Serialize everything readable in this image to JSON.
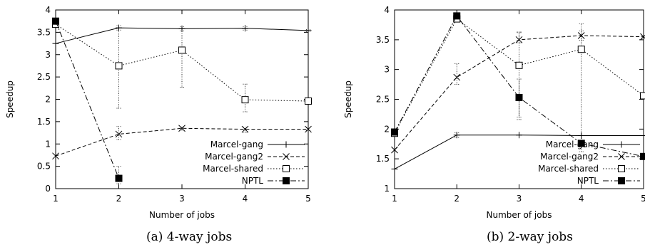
{
  "chart_data": [
    {
      "type": "line",
      "caption": "(a) 4-way jobs",
      "xlabel": "Number of jobs",
      "ylabel": "Speedup",
      "x": [
        1,
        2,
        3,
        4,
        5
      ],
      "xlim": [
        1,
        5
      ],
      "ylim": [
        0,
        4
      ],
      "xticks": [
        "1",
        "2",
        "3",
        "4",
        "5"
      ],
      "yticks": [
        "0",
        "0.5",
        "1",
        "1.5",
        "2",
        "2.5",
        "3",
        "3.5",
        "4"
      ],
      "legend_position": "bottom-right",
      "grid": false,
      "series": [
        {
          "name": "Marcel-gang",
          "marker": "plus",
          "dash": "solid",
          "values": [
            3.25,
            3.6,
            3.58,
            3.59,
            3.54
          ],
          "errors": [
            [
              0,
              0
            ],
            [
              0.05,
              0.05
            ],
            [
              0.05,
              0.05
            ],
            [
              0.04,
              0.04
            ],
            [
              0.02,
              0.02
            ]
          ]
        },
        {
          "name": "Marcel-gang2",
          "marker": "cross",
          "dash": "dashed",
          "values": [
            0.73,
            1.22,
            1.35,
            1.33,
            1.33
          ],
          "errors": [
            [
              0,
              0
            ],
            [
              0.12,
              0.17
            ],
            [
              0.04,
              0.03
            ],
            [
              0.07,
              0.05
            ],
            [
              0.03,
              0.03
            ]
          ]
        },
        {
          "name": "Marcel-shared",
          "marker": "open-square",
          "dash": "dotted",
          "values": [
            3.68,
            2.75,
            3.1,
            1.99,
            1.96
          ],
          "errors": [
            [
              0,
              0
            ],
            [
              0.95,
              0.85
            ],
            [
              0.83,
              0.48
            ],
            [
              0.27,
              0.35
            ],
            [
              0.02,
              0.02
            ]
          ]
        },
        {
          "name": "NPTL",
          "marker": "filled-square",
          "dash": "dashdot",
          "values": [
            3.75,
            0.23,
            null,
            null,
            null
          ],
          "errors": [
            [
              0,
              0
            ],
            [
              0.12,
              0.27
            ],
            [
              0,
              0
            ],
            [
              0,
              0
            ],
            [
              0,
              0
            ]
          ]
        }
      ]
    },
    {
      "type": "line",
      "caption": "(b) 2-way jobs",
      "xlabel": "Number of jobs",
      "ylabel": "Speedup",
      "x": [
        1,
        2,
        3,
        4,
        5
      ],
      "xlim": [
        1,
        5
      ],
      "ylim": [
        1,
        4
      ],
      "xticks": [
        "1",
        "2",
        "3",
        "4",
        "5"
      ],
      "yticks": [
        "1",
        "1.5",
        "2",
        "2.5",
        "3",
        "3.5",
        "4"
      ],
      "legend_position": "bottom-right",
      "grid": false,
      "series": [
        {
          "name": "Marcel-gang",
          "marker": "plus",
          "dash": "solid",
          "values": [
            1.33,
            1.9,
            1.9,
            1.89,
            1.89
          ],
          "errors": [
            [
              0,
              0
            ],
            [
              0.04,
              0.04
            ],
            [
              0,
              0
            ],
            [
              0,
              0
            ],
            [
              0,
              0
            ]
          ]
        },
        {
          "name": "Marcel-gang2",
          "marker": "cross",
          "dash": "dashed",
          "values": [
            1.65,
            2.87,
            3.5,
            3.57,
            3.55
          ],
          "errors": [
            [
              0,
              0
            ],
            [
              0.12,
              0.23
            ],
            [
              0.05,
              0.12
            ],
            [
              0.08,
              0.08
            ],
            [
              0.02,
              0.02
            ]
          ]
        },
        {
          "name": "Marcel-shared",
          "marker": "open-square",
          "dash": "dotted",
          "values": [
            1.93,
            3.85,
            3.07,
            3.34,
            2.56
          ],
          "errors": [
            [
              0,
              0
            ],
            [
              0.03,
              0.03
            ],
            [
              0.87,
              0.56
            ],
            [
              1.56,
              0.43
            ],
            [
              0.02,
              0.02
            ]
          ]
        },
        {
          "name": "NPTL",
          "marker": "filled-square",
          "dash": "dashdot",
          "values": [
            1.95,
            3.9,
            2.53,
            1.76,
            1.54
          ],
          "errors": [
            [
              0,
              0
            ],
            [
              0.03,
              0.03
            ],
            [
              0.37,
              0.31
            ],
            [
              0.14,
              0.05
            ],
            [
              0.02,
              0.02
            ]
          ]
        }
      ]
    }
  ]
}
